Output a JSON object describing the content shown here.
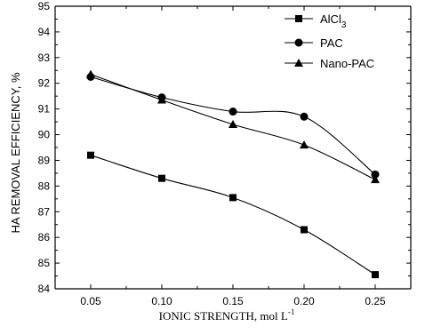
{
  "chart_data": {
    "type": "line",
    "x": [
      0.05,
      0.1,
      0.15,
      0.2,
      0.25
    ],
    "x_tick_labels": [
      "0.05",
      "0.10",
      "0.15",
      "0.20",
      "0.25"
    ],
    "xlim": [
      0.025,
      0.275
    ],
    "ylim": [
      84,
      95
    ],
    "y_ticks": [
      84,
      85,
      86,
      87,
      88,
      89,
      90,
      91,
      92,
      93,
      94,
      95
    ],
    "xlabel": "IONIC STRENGTH, mol L",
    "xlabel_superscript": "-1",
    "ylabel": "HA REMOVAL EFFICIENCY, %",
    "legend_position": "top-right",
    "series": [
      {
        "name": "AlCl",
        "name_subscript": "3",
        "marker": "square",
        "values": [
          89.2,
          88.3,
          87.55,
          86.3,
          84.55
        ]
      },
      {
        "name": "PAC",
        "marker": "circle",
        "values": [
          92.25,
          91.45,
          90.9,
          90.7,
          88.45
        ]
      },
      {
        "name": "Nano-PAC",
        "marker": "triangle",
        "values": [
          92.35,
          91.35,
          90.4,
          89.6,
          88.25
        ]
      }
    ]
  }
}
